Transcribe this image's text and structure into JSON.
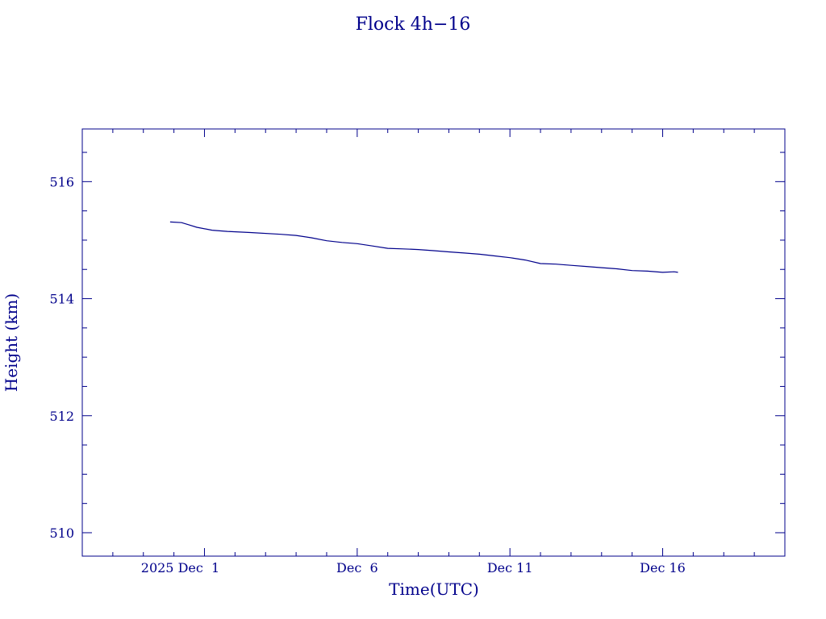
{
  "chart_data": {
    "type": "line",
    "title": "Flock 4h−16",
    "xlabel": "Time(UTC)",
    "ylabel": "Height (km)",
    "xlim": [
      "2025-11-27",
      "2025-12-20"
    ],
    "ylim": [
      509.6,
      516.9
    ],
    "grid": false,
    "line_color": "#00008b",
    "x_ticks": [
      {
        "date": "2025-12-01",
        "label": "2025 Dec  1"
      },
      {
        "date": "2025-12-06",
        "label": "Dec  6"
      },
      {
        "date": "2025-12-11",
        "label": "Dec 11"
      },
      {
        "date": "2025-12-16",
        "label": "Dec 16"
      }
    ],
    "y_ticks": [
      510,
      512,
      514,
      516
    ],
    "series": [
      {
        "x": [
          "2025-11-29T21:00",
          "2025-11-30T06:00",
          "2025-11-30T12:00",
          "2025-11-30T18:00",
          "2025-12-01T06:00",
          "2025-12-01T18:00",
          "2025-12-02T12:00",
          "2025-12-03T12:00",
          "2025-12-04T00:00",
          "2025-12-04T12:00",
          "2025-12-05T00:00",
          "2025-12-05T12:00",
          "2025-12-06T00:00",
          "2025-12-06T12:00",
          "2025-12-07T00:00",
          "2025-12-07T12:00",
          "2025-12-08T00:00",
          "2025-12-08T12:00",
          "2025-12-09T00:00",
          "2025-12-09T12:00",
          "2025-12-10T00:00",
          "2025-12-10T12:00",
          "2025-12-11T00:00",
          "2025-12-11T12:00",
          "2025-12-12T00:00",
          "2025-12-12T12:00",
          "2025-12-13T00:00",
          "2025-12-13T12:00",
          "2025-12-14T00:00",
          "2025-12-14T12:00",
          "2025-12-15T00:00",
          "2025-12-15T12:00",
          "2025-12-16T00:00",
          "2025-12-16T09:00",
          "2025-12-16T12:00"
        ],
        "values": [
          515.31,
          515.3,
          515.26,
          515.22,
          515.17,
          515.15,
          515.13,
          515.1,
          515.08,
          515.04,
          514.99,
          514.96,
          514.94,
          514.9,
          514.86,
          514.85,
          514.84,
          514.82,
          514.8,
          514.78,
          514.76,
          514.73,
          514.7,
          514.66,
          514.6,
          514.59,
          514.57,
          514.55,
          514.53,
          514.51,
          514.48,
          514.47,
          514.45,
          514.46,
          514.45
        ]
      }
    ]
  }
}
